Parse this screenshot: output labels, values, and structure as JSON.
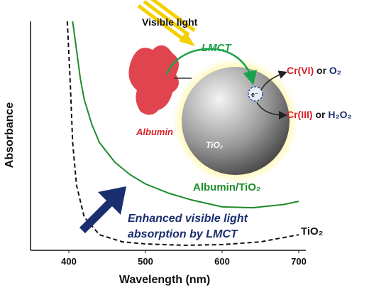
{
  "chart_data": {
    "type": "line",
    "x_label": "Wavelength (nm)",
    "y_label": "Absorbance",
    "xlim": [
      350,
      700
    ],
    "xticks": [
      400,
      500,
      600,
      700
    ],
    "ylim": [
      0,
      1
    ],
    "series": [
      {
        "name": "Albumin/TiO₂",
        "color": "#1e8c2a",
        "dash": false,
        "x": [
          405,
          410,
          415,
          420,
          430,
          440,
          460,
          480,
          500,
          530,
          560,
          600,
          640,
          680,
          700
        ],
        "values": [
          1.0,
          0.876,
          0.75,
          0.66,
          0.55,
          0.47,
          0.385,
          0.33,
          0.29,
          0.25,
          0.22,
          0.19,
          0.186,
          0.2,
          0.214
        ]
      },
      {
        "name": "TiO₂",
        "color": "#111111",
        "dash": true,
        "x": [
          398,
          402,
          405,
          410,
          420,
          440,
          470,
          500,
          550,
          600,
          650,
          700
        ],
        "values": [
          1.0,
          0.72,
          0.47,
          0.285,
          0.146,
          0.068,
          0.037,
          0.028,
          0.022,
          0.025,
          0.037,
          0.068
        ]
      }
    ],
    "annotations": [
      "Visible light",
      "LMCT",
      "Albumin",
      "TiO₂",
      "e⁻",
      "Cr(VI)",
      "or",
      "O₂",
      "Cr(III)",
      "or",
      "H₂O₂",
      "Enhanced visible light",
      "absorption by LMCT"
    ]
  }
}
